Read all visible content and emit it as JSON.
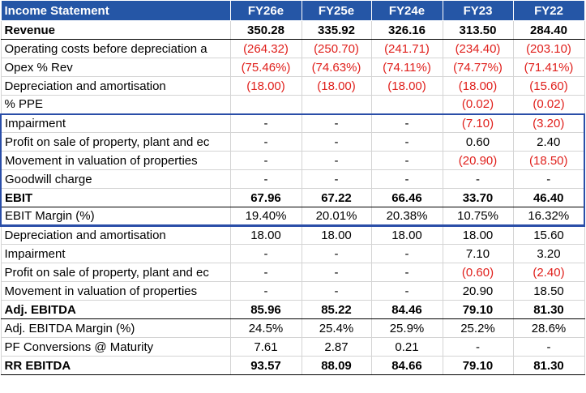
{
  "table": {
    "header": [
      "Income Statement",
      "FY26e",
      "FY25e",
      "FY24e",
      "FY23",
      "FY22"
    ],
    "rows": [
      [
        "Revenue",
        "350.28",
        "335.92",
        "326.16",
        "313.50",
        "284.40"
      ],
      [
        "Operating costs before depreciation a",
        "(264.32)",
        "(250.70)",
        "(241.71)",
        "(234.40)",
        "(203.10)"
      ],
      [
        "Opex % Rev",
        "(75.46%)",
        "(74.63%)",
        "(74.11%)",
        "(74.77%)",
        "(71.41%)"
      ],
      [
        "Depreciation and amortisation",
        "(18.00)",
        "(18.00)",
        "(18.00)",
        "(18.00)",
        "(15.60)"
      ],
      [
        "% PPE",
        "",
        "",
        "",
        "(0.02)",
        "(0.02)"
      ],
      [
        "Impairment",
        "-",
        "-",
        "-",
        "(7.10)",
        "(3.20)"
      ],
      [
        "Profit on sale of property, plant and ec",
        "-",
        "-",
        "-",
        "0.60",
        "2.40"
      ],
      [
        "Movement in valuation of properties",
        "-",
        "-",
        "-",
        "(20.90)",
        "(18.50)"
      ],
      [
        "Goodwill charge",
        "-",
        "-",
        "-",
        "-",
        "-"
      ],
      [
        "EBIT",
        "67.96",
        "67.22",
        "66.46",
        "33.70",
        "46.40"
      ],
      [
        "EBIT Margin (%)",
        "19.40%",
        "20.01%",
        "20.38%",
        "10.75%",
        "16.32%"
      ],
      [
        "Depreciation and amortisation",
        "18.00",
        "18.00",
        "18.00",
        "18.00",
        "15.60"
      ],
      [
        "Impairment",
        "-",
        "-",
        "-",
        "7.10",
        "3.20"
      ],
      [
        "Profit on sale of property, plant and ec",
        "-",
        "-",
        "-",
        "(0.60)",
        "(2.40)"
      ],
      [
        "Movement in valuation of properties",
        "-",
        "-",
        "-",
        "20.90",
        "18.50"
      ],
      [
        "Adj. EBITDA",
        "85.96",
        "85.22",
        "84.46",
        "79.10",
        "81.30"
      ],
      [
        "Adj. EBITDA Margin (%)",
        "24.5%",
        "25.4%",
        "25.9%",
        "25.2%",
        "28.6%"
      ],
      [
        "PF Conversions @ Maturity",
        "7.61",
        "2.87",
        "0.21",
        "-",
        "-"
      ],
      [
        "RR EBITDA",
        "93.57",
        "88.09",
        "84.66",
        "79.10",
        "81.30"
      ]
    ]
  }
}
